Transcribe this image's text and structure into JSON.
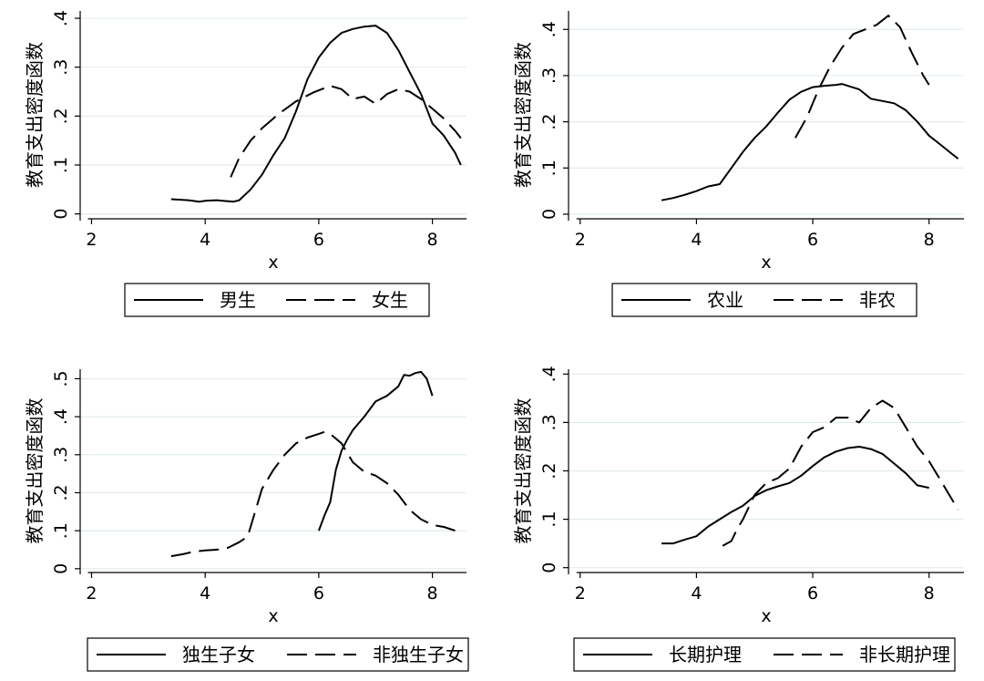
{
  "chart_data": [
    {
      "type": "line",
      "xlabel": "x",
      "ylabel": "教育支出密度函数",
      "xlim": [
        1.8,
        8.6
      ],
      "ylim": [
        -0.01,
        0.415
      ],
      "xticks": [
        2,
        4,
        6,
        8
      ],
      "xtick_labels": [
        "2",
        "4",
        "6",
        "8"
      ],
      "yticks": [
        0,
        0.1,
        0.2,
        0.3,
        0.4
      ],
      "ytick_labels": [
        "0",
        ".1",
        ".2",
        ".3",
        ".4"
      ],
      "grid": true,
      "legend_placement": "bottom",
      "series": [
        {
          "name": "男生",
          "style": "solid",
          "x": [
            3.4,
            3.7,
            3.9,
            4.0,
            4.2,
            4.4,
            4.5,
            4.6,
            4.8,
            5.0,
            5.2,
            5.4,
            5.6,
            5.8,
            6.0,
            6.2,
            6.4,
            6.6,
            6.8,
            7.0,
            7.2,
            7.4,
            7.6,
            7.8,
            8.0,
            8.2,
            8.4,
            8.5
          ],
          "y": [
            0.03,
            0.028,
            0.025,
            0.027,
            0.028,
            0.026,
            0.025,
            0.028,
            0.05,
            0.08,
            0.12,
            0.155,
            0.21,
            0.275,
            0.32,
            0.35,
            0.37,
            0.378,
            0.383,
            0.385,
            0.37,
            0.335,
            0.29,
            0.245,
            0.185,
            0.16,
            0.125,
            0.1
          ]
        },
        {
          "name": "女生",
          "style": "dashed",
          "x": [
            4.45,
            4.6,
            4.8,
            5.0,
            5.3,
            5.6,
            5.9,
            6.2,
            6.4,
            6.6,
            6.8,
            7.0,
            7.2,
            7.4,
            7.6,
            7.8,
            8.0,
            8.2,
            8.4,
            8.5
          ],
          "y": [
            0.075,
            0.115,
            0.15,
            0.175,
            0.205,
            0.23,
            0.248,
            0.262,
            0.255,
            0.235,
            0.24,
            0.225,
            0.245,
            0.255,
            0.25,
            0.235,
            0.215,
            0.195,
            0.17,
            0.155
          ]
        }
      ]
    },
    {
      "type": "line",
      "xlabel": "x",
      "ylabel": "教育支出密度函数",
      "xlim": [
        1.8,
        8.6
      ],
      "ylim": [
        -0.01,
        0.44
      ],
      "xticks": [
        2,
        4,
        6,
        8
      ],
      "xtick_labels": [
        "2",
        "4",
        "6",
        "8"
      ],
      "yticks": [
        0,
        0.1,
        0.2,
        0.3,
        0.4
      ],
      "ytick_labels": [
        "0",
        ".1",
        ".2",
        ".3",
        ".4"
      ],
      "grid": true,
      "legend_placement": "bottom",
      "series": [
        {
          "name": "农业",
          "style": "solid",
          "x": [
            3.4,
            3.6,
            3.8,
            4.0,
            4.2,
            4.4,
            4.6,
            4.8,
            5.0,
            5.2,
            5.4,
            5.6,
            5.8,
            6.0,
            6.2,
            6.4,
            6.5,
            6.6,
            6.8,
            7.0,
            7.2,
            7.4,
            7.6,
            7.8,
            8.0,
            8.2,
            8.4,
            8.5
          ],
          "y": [
            0.03,
            0.035,
            0.042,
            0.05,
            0.06,
            0.065,
            0.1,
            0.135,
            0.165,
            0.19,
            0.22,
            0.248,
            0.265,
            0.275,
            0.278,
            0.28,
            0.282,
            0.278,
            0.27,
            0.25,
            0.245,
            0.24,
            0.225,
            0.2,
            0.17,
            0.15,
            0.13,
            0.12
          ]
        },
        {
          "name": "非农",
          "style": "dashed",
          "x": [
            5.7,
            5.9,
            6.1,
            6.3,
            6.5,
            6.7,
            6.9,
            7.1,
            7.3,
            7.5,
            7.7,
            7.9,
            8.0
          ],
          "y": [
            0.165,
            0.21,
            0.27,
            0.32,
            0.36,
            0.39,
            0.4,
            0.41,
            0.43,
            0.405,
            0.35,
            0.3,
            0.28
          ]
        }
      ]
    },
    {
      "type": "line",
      "xlabel": "x",
      "ylabel": "教育支出密度函数",
      "xlim": [
        1.8,
        8.6
      ],
      "ylim": [
        -0.01,
        0.525
      ],
      "xticks": [
        2,
        4,
        6,
        8
      ],
      "xtick_labels": [
        "2",
        "4",
        "6",
        "8"
      ],
      "yticks": [
        0,
        0.1,
        0.2,
        0.3,
        0.4,
        0.5
      ],
      "ytick_labels": [
        "0",
        ".1",
        ".2",
        ".3",
        ".4",
        ".5"
      ],
      "grid": true,
      "legend_placement": "bottom",
      "series": [
        {
          "name": "独生子女",
          "style": "solid",
          "x": [
            6.0,
            6.1,
            6.2,
            6.3,
            6.4,
            6.5,
            6.6,
            6.8,
            7.0,
            7.2,
            7.4,
            7.5,
            7.6,
            7.7,
            7.8,
            7.9,
            8.0
          ],
          "y": [
            0.1,
            0.14,
            0.175,
            0.26,
            0.31,
            0.34,
            0.365,
            0.4,
            0.44,
            0.455,
            0.48,
            0.51,
            0.508,
            0.515,
            0.518,
            0.5,
            0.455
          ]
        },
        {
          "name": "非独生子女",
          "style": "dashed",
          "x": [
            3.4,
            3.6,
            3.8,
            4.0,
            4.2,
            4.4,
            4.6,
            4.75,
            4.9,
            5.0,
            5.2,
            5.4,
            5.6,
            5.8,
            6.0,
            6.1,
            6.2,
            6.4,
            6.6,
            6.8,
            7.0,
            7.2,
            7.4,
            7.6,
            7.8,
            8.0,
            8.2,
            8.4,
            8.5
          ],
          "y": [
            0.033,
            0.038,
            0.045,
            0.048,
            0.05,
            0.055,
            0.07,
            0.085,
            0.16,
            0.21,
            0.26,
            0.3,
            0.33,
            0.345,
            0.355,
            0.36,
            0.355,
            0.33,
            0.28,
            0.255,
            0.245,
            0.225,
            0.195,
            0.155,
            0.13,
            0.115,
            0.11,
            0.1,
            0.095
          ]
        }
      ]
    },
    {
      "type": "line",
      "xlabel": "x",
      "ylabel": "教育支出密度函数",
      "xlim": [
        1.8,
        8.6
      ],
      "ylim": [
        -0.01,
        0.41
      ],
      "xticks": [
        2,
        4,
        6,
        8
      ],
      "xtick_labels": [
        "2",
        "4",
        "6",
        "8"
      ],
      "yticks": [
        0,
        0.1,
        0.2,
        0.3,
        0.4
      ],
      "ytick_labels": [
        "0",
        ".1",
        ".2",
        ".3",
        ".4"
      ],
      "grid": true,
      "legend_placement": "bottom",
      "series": [
        {
          "name": "长期护理",
          "style": "solid",
          "x": [
            3.4,
            3.6,
            3.8,
            4.0,
            4.2,
            4.4,
            4.6,
            4.8,
            5.0,
            5.2,
            5.4,
            5.6,
            5.8,
            6.0,
            6.2,
            6.4,
            6.6,
            6.8,
            7.0,
            7.2,
            7.4,
            7.6,
            7.8,
            8.0
          ],
          "y": [
            0.05,
            0.05,
            0.058,
            0.065,
            0.085,
            0.1,
            0.115,
            0.128,
            0.148,
            0.16,
            0.168,
            0.175,
            0.19,
            0.21,
            0.228,
            0.24,
            0.247,
            0.25,
            0.245,
            0.235,
            0.215,
            0.195,
            0.17,
            0.165
          ]
        },
        {
          "name": "非长期护理",
          "style": "dashed",
          "x": [
            4.45,
            4.6,
            4.7,
            4.8,
            5.0,
            5.2,
            5.4,
            5.6,
            5.8,
            6.0,
            6.2,
            6.4,
            6.6,
            6.8,
            7.0,
            7.2,
            7.4,
            7.6,
            7.8,
            8.0,
            8.2,
            8.4,
            8.5
          ],
          "y": [
            0.045,
            0.055,
            0.08,
            0.1,
            0.15,
            0.175,
            0.185,
            0.205,
            0.25,
            0.28,
            0.29,
            0.31,
            0.31,
            0.3,
            0.33,
            0.345,
            0.33,
            0.29,
            0.25,
            0.22,
            0.18,
            0.14,
            0.12
          ]
        }
      ]
    }
  ]
}
